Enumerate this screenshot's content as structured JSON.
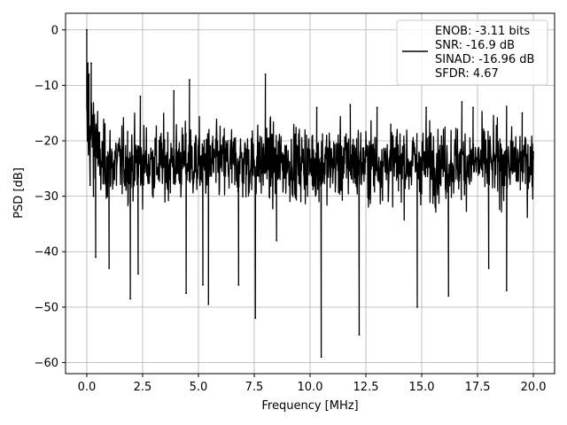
{
  "chart_data": {
    "type": "line",
    "xlabel": "Frequency [MHz]",
    "ylabel": "PSD [dB]",
    "xlim": [
      -0.95,
      20.95
    ],
    "ylim": [
      -62,
      3
    ],
    "xticks": [
      0.0,
      2.5,
      5.0,
      7.5,
      10.0,
      12.5,
      15.0,
      17.5,
      20.0
    ],
    "xtick_labels": [
      "0.0",
      "2.5",
      "5.0",
      "7.5",
      "10.0",
      "12.5",
      "15.0",
      "17.5",
      "20.0"
    ],
    "yticks": [
      0,
      -10,
      -20,
      -30,
      -40,
      -50,
      -60
    ],
    "ytick_labels": [
      "0",
      "−10",
      "−20",
      "−30",
      "−40",
      "−50",
      "−60"
    ],
    "grid": true,
    "legend_position": "top-right",
    "legend": [
      "ENOB: -3.11 bits",
      "SNR: -16.9 dB",
      "SINAD: -16.96 dB",
      "SFDR: 4.67"
    ],
    "series": [
      {
        "color": "#000000",
        "x": [
          0.0,
          0.05,
          0.1,
          0.15,
          0.2,
          0.3,
          0.4,
          1.0,
          1.95,
          2.3,
          2.4,
          3.9,
          4.45,
          4.6,
          5.2,
          5.45,
          6.8,
          7.55,
          8.0,
          8.5,
          10.3,
          10.5,
          11.8,
          12.2,
          13.0,
          14.8,
          15.2,
          16.2,
          16.8,
          17.3,
          18.0,
          18.8,
          19.5,
          20.0
        ],
        "y": [
          0,
          -6,
          -8,
          -28,
          -6,
          -30,
          -41,
          -43,
          -48.5,
          -44,
          -12,
          -11,
          -47.5,
          -9,
          -46,
          -49.5,
          -46,
          -52,
          -8,
          -38,
          -14,
          -59,
          -13.5,
          -55,
          -14,
          -50,
          -14,
          -48,
          -13,
          -14,
          -43,
          -47,
          -15,
          -22
        ]
      }
    ]
  }
}
